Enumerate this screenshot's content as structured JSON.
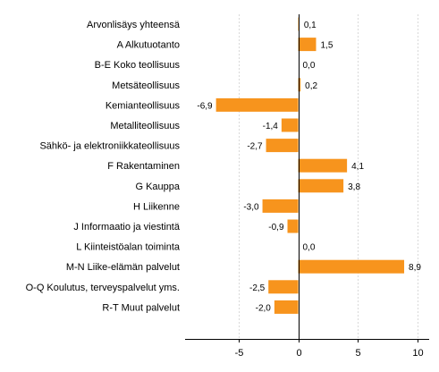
{
  "chart_data": {
    "type": "bar",
    "orientation": "horizontal",
    "categories": [
      "Arvonlisäys yhteensä",
      "A Alkutuotanto",
      "B-E Koko teollisuus",
      "Metsäteollisuus",
      "Kemianteollisuus",
      "Metalliteollisuus",
      "Sähkö- ja elektroniikkateollisuus",
      "F Rakentaminen",
      "G Kauppa",
      "H Liikenne",
      "J Informaatio ja viestintä",
      "L Kiinteistöalan toiminta",
      "M-N Liike-elämän palvelut",
      "O-Q Koulutus, terveyspalvelut yms.",
      "R-T Muut palvelut"
    ],
    "values": [
      0.1,
      1.5,
      0.0,
      0.2,
      -6.9,
      -1.4,
      -2.7,
      4.1,
      3.8,
      -3.0,
      -0.9,
      0.0,
      8.9,
      -2.5,
      -2.0
    ],
    "value_labels": [
      "0,1",
      "1,5",
      "0,0",
      "0,2",
      "-6,9",
      "-1,4",
      "-2,7",
      "4,1",
      "3,8",
      "-3,0",
      "-0,9",
      "0,0",
      "8,9",
      "-2,5",
      "-2,0"
    ],
    "xlim": [
      -9.5,
      11
    ],
    "xticks": [
      -5,
      0,
      5,
      10
    ],
    "xtick_labels": [
      "-5",
      "0",
      "5",
      "10"
    ],
    "grid": "vertical",
    "bar_color": "#f7941d",
    "title": "",
    "xlabel": "",
    "ylabel": ""
  }
}
